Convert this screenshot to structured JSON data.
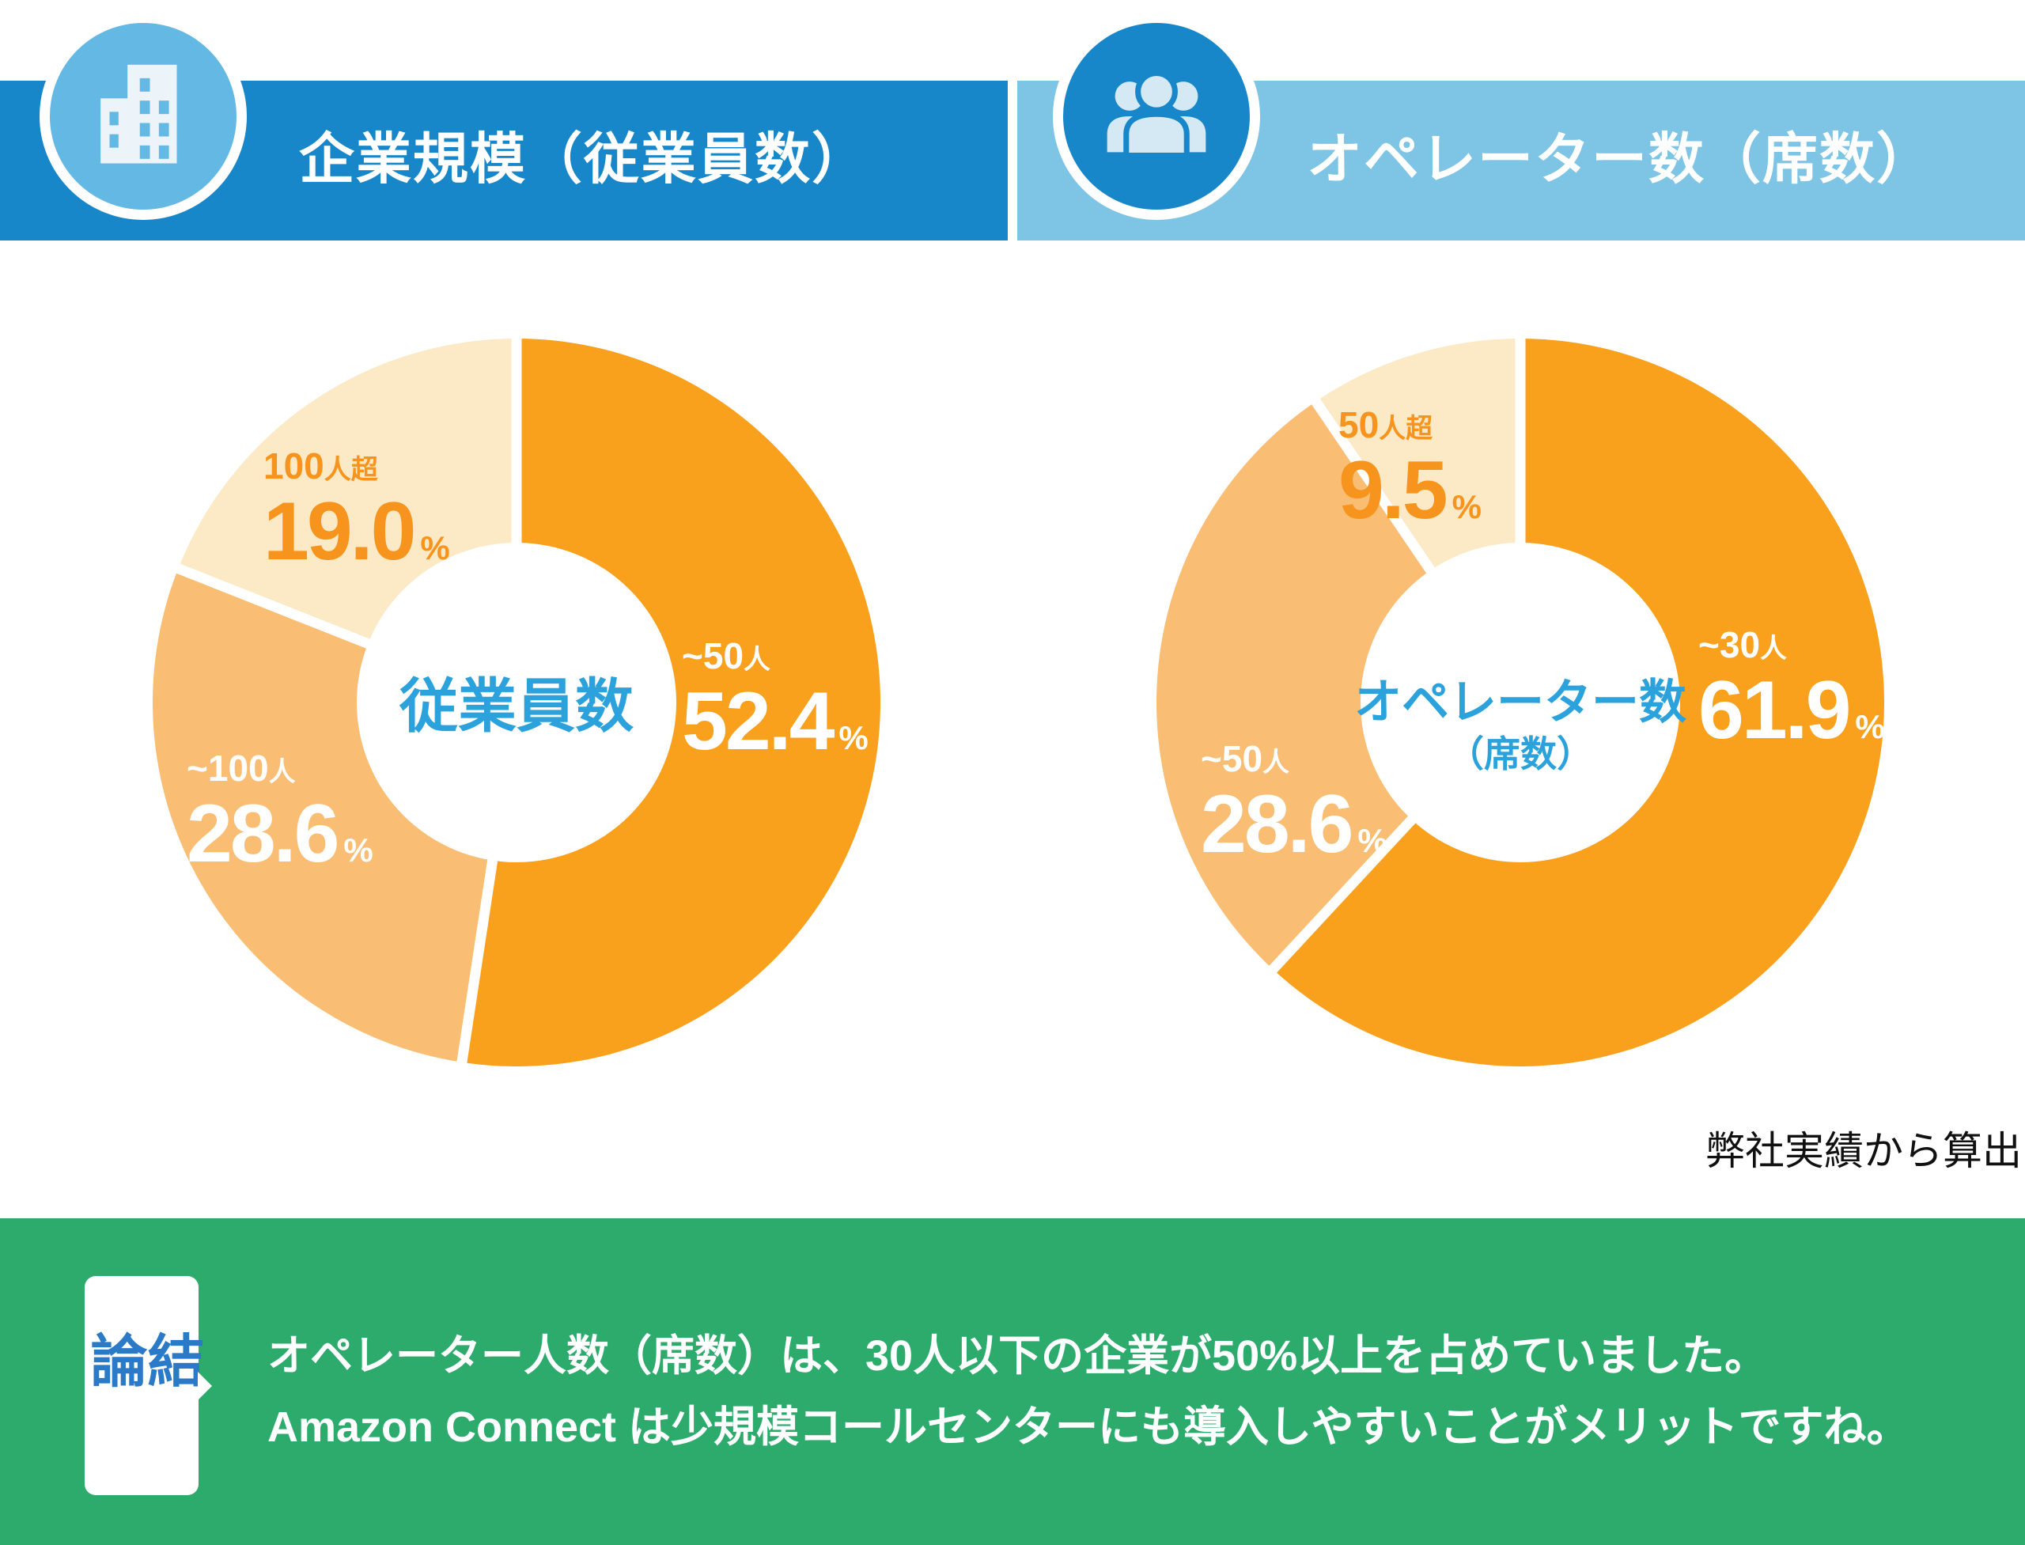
{
  "headers": {
    "left": {
      "title": "企業規模（従業員数）"
    },
    "right": {
      "title": "オペレーター数（席数）"
    }
  },
  "source_note": "弊社実績から算出",
  "conclusion": {
    "badge": "結論",
    "line1": "オペレーター人数（席数）は、30人以下の企業が50%以上を占めていました。",
    "line2": "Amazon Connect は少規模コールセンターにも導入しやすいことがメリットですね。"
  },
  "colors": {
    "header_left_bar": "#1787C9",
    "header_right_bar": "#7EC4E4",
    "icon_circle_light": "#63B9E3",
    "icon_circle_dark": "#1787C9",
    "icon_glyph_light": "#ECF4F9",
    "slice_dark_orange": "#F9A01C",
    "slice_mid_orange": "#F9BE74",
    "slice_pale_orange": "#FCE9C5",
    "orange_label_text": "#F7941D",
    "center_text_blue": "#2BA2DB",
    "banner_green": "#2CAB6C",
    "badge_blue": "#2B7AC7"
  },
  "chart_data": [
    {
      "type": "pie",
      "title": "企業規模（従業員数）",
      "center_label": [
        "従業員数"
      ],
      "unit": "%",
      "start_angle_deg": 0,
      "direction": "clockwise",
      "slices": [
        {
          "label": "~50人",
          "range_main": "~50",
          "range_suffix": "人",
          "value": 52.4,
          "value_label": "52.4",
          "value_suffix": "%",
          "color": "#F9A01C",
          "label_color": "#FFFFFF"
        },
        {
          "label": "~100人",
          "range_main": "~100",
          "range_suffix": "人",
          "value": 28.6,
          "value_label": "28.6",
          "value_suffix": "%",
          "color": "#F9BE74",
          "label_color": "#FFFFFF"
        },
        {
          "label": "100人超",
          "range_main": "100",
          "range_suffix": "人超",
          "value": 19.0,
          "value_label": "19.0",
          "value_suffix": "%",
          "color": "#FCE9C5",
          "label_color": "#F7941D"
        }
      ]
    },
    {
      "type": "pie",
      "title": "オペレーター数（席数）",
      "center_label": [
        "オペレーター数",
        "（席数）"
      ],
      "unit": "%",
      "start_angle_deg": 0,
      "direction": "clockwise",
      "slices": [
        {
          "label": "~30人",
          "range_main": "~30",
          "range_suffix": "人",
          "value": 61.9,
          "value_label": "61.9",
          "value_suffix": "%",
          "color": "#F9A01C",
          "label_color": "#FFFFFF"
        },
        {
          "label": "~50人",
          "range_main": "~50",
          "range_suffix": "人",
          "value": 28.6,
          "value_label": "28.6",
          "value_suffix": "%",
          "color": "#F9BE74",
          "label_color": "#FFFFFF"
        },
        {
          "label": "50人超",
          "range_main": "50",
          "range_suffix": "人超",
          "value": 9.5,
          "value_label": "9.5",
          "value_suffix": "%",
          "color": "#FCE9C5",
          "label_color": "#F7941D"
        }
      ]
    }
  ]
}
